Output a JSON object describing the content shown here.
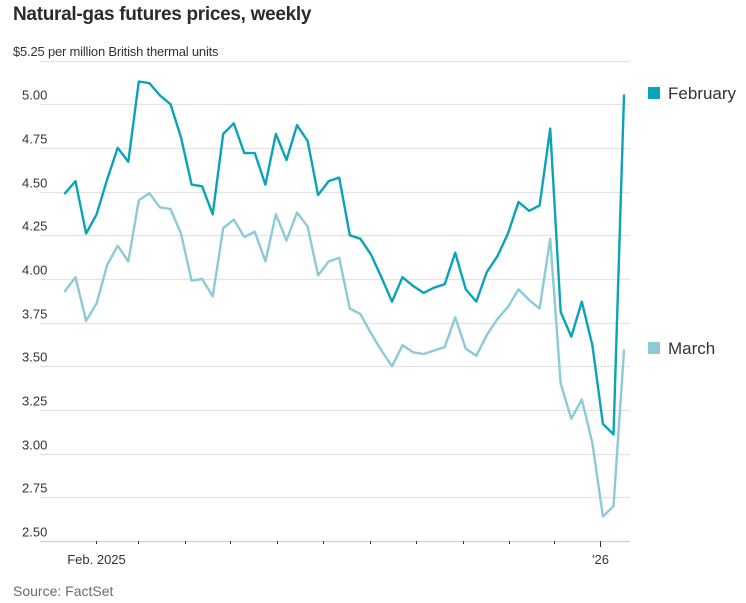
{
  "chart_data": {
    "type": "line",
    "title": "Natural-gas futures prices, weekly",
    "subtitle": "$5.25 per million British thermal units",
    "source": "Source: FactSet",
    "xlabel": "",
    "ylabel": "$ per million British thermal units",
    "ylim": [
      2.5,
      5.25
    ],
    "yticks": [
      "$5.25",
      "5.00",
      "4.75",
      "4.50",
      "4.25",
      "4.00",
      "3.75",
      "3.50",
      "3.25",
      "3.00",
      "2.75",
      "2.50"
    ],
    "ytick_values": [
      5.25,
      5.0,
      4.75,
      4.5,
      4.25,
      4.0,
      3.75,
      3.5,
      3.25,
      3.0,
      2.75,
      2.5
    ],
    "grid": true,
    "x_unit": "week",
    "x_range_weeks": [
      0,
      53
    ],
    "x_month_ticks": [
      {
        "week": 2.9,
        "label": "Feb. 2025"
      },
      {
        "week": 6.9,
        "label": ""
      },
      {
        "week": 11.4,
        "label": ""
      },
      {
        "week": 15.6,
        "label": ""
      },
      {
        "week": 20.1,
        "label": ""
      },
      {
        "week": 24.5,
        "label": ""
      },
      {
        "week": 28.9,
        "label": ""
      },
      {
        "week": 33.3,
        "label": ""
      },
      {
        "week": 37.7,
        "label": ""
      },
      {
        "week": 42.1,
        "label": ""
      },
      {
        "week": 46.4,
        "label": ""
      },
      {
        "week": 50.7,
        "label": "'26"
      }
    ],
    "legend_placement": "right",
    "series": [
      {
        "name": "February",
        "color": "#0aa3b8",
        "values": [
          4.49,
          4.56,
          4.26,
          4.37,
          4.57,
          4.75,
          4.67,
          5.13,
          5.12,
          5.05,
          5.0,
          4.81,
          4.54,
          4.53,
          4.37,
          4.83,
          4.89,
          4.72,
          4.72,
          4.54,
          4.83,
          4.68,
          4.88,
          4.79,
          4.48,
          4.56,
          4.58,
          4.25,
          4.23,
          4.14,
          4.01,
          3.87,
          4.01,
          3.96,
          3.92,
          3.95,
          3.97,
          4.15,
          3.94,
          3.87,
          4.04,
          4.13,
          4.26,
          4.44,
          4.39,
          4.42,
          4.86,
          3.81,
          3.67,
          3.87,
          3.62,
          3.17,
          3.11,
          5.05
        ]
      },
      {
        "name": "March",
        "color": "#8ccad7",
        "values": [
          3.93,
          4.01,
          3.76,
          3.86,
          4.08,
          4.19,
          4.1,
          4.45,
          4.49,
          4.41,
          4.4,
          4.26,
          3.99,
          4.0,
          3.9,
          4.29,
          4.34,
          4.24,
          4.27,
          4.1,
          4.37,
          4.22,
          4.38,
          4.3,
          4.02,
          4.1,
          4.12,
          3.83,
          3.8,
          3.69,
          3.59,
          3.5,
          3.62,
          3.58,
          3.57,
          3.59,
          3.61,
          3.78,
          3.6,
          3.56,
          3.68,
          3.77,
          3.84,
          3.94,
          3.88,
          3.83,
          4.23,
          3.4,
          3.2,
          3.31,
          3.06,
          2.64,
          2.7,
          3.59
        ]
      }
    ]
  }
}
